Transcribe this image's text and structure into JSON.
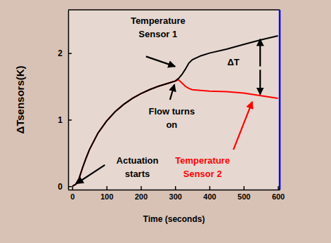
{
  "chart_data": {
    "type": "line",
    "y_label": "ΔTsensors(K)",
    "x_label": "Time (seconds)",
    "x": [
      0,
      10,
      20,
      30,
      40,
      50,
      75,
      100,
      125,
      150,
      175,
      200,
      225,
      250,
      275,
      300,
      310,
      320,
      330,
      340,
      350,
      375,
      400,
      450,
      500,
      550,
      600
    ],
    "series": [
      {
        "color": "#000000",
        "values": [
          0,
          0.03,
          0.12,
          0.28,
          0.42,
          0.55,
          0.8,
          0.98,
          1.12,
          1.23,
          1.32,
          1.39,
          1.45,
          1.5,
          1.54,
          1.58,
          1.62,
          1.68,
          1.76,
          1.85,
          1.9,
          1.96,
          2.0,
          2.06,
          2.13,
          2.2,
          2.26
        ]
      },
      {
        "color": "#ff0000",
        "values": [
          0,
          0.03,
          0.12,
          0.28,
          0.42,
          0.55,
          0.8,
          0.98,
          1.12,
          1.23,
          1.32,
          1.39,
          1.45,
          1.5,
          1.54,
          1.58,
          1.6,
          1.55,
          1.5,
          1.47,
          1.45,
          1.44,
          1.43,
          1.42,
          1.4,
          1.36,
          1.32
        ]
      }
    ],
    "annotations": [
      {
        "text": "Temperature Sensor 1",
        "color": "#000000"
      },
      {
        "text": "ΔT",
        "color": "#000000"
      },
      {
        "text": "Flow turns on",
        "color": "#000000"
      },
      {
        "text": "Actuation starts",
        "color": "#000000"
      },
      {
        "text": "Temperature Sensor 2",
        "color": "#ff0000"
      }
    ],
    "xlim": [
      -12,
      605
    ],
    "ylim": [
      -0.05,
      2.65
    ],
    "xticks": [
      0,
      100,
      200,
      300,
      400,
      500,
      600
    ],
    "yticks": [
      0,
      1,
      2
    ],
    "grid": false
  }
}
